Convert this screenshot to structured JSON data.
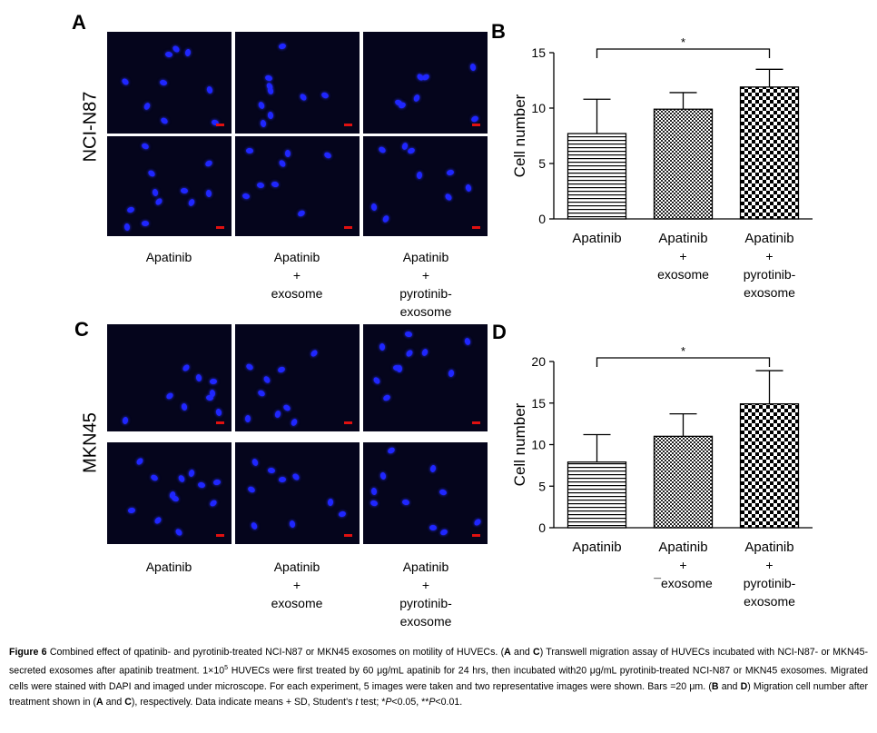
{
  "panels": {
    "A": {
      "letter": "A",
      "row_label": "NCI-N87"
    },
    "B": {
      "letter": "B"
    },
    "C": {
      "letter": "C",
      "row_label": "MKN45"
    },
    "D": {
      "letter": "D"
    }
  },
  "micro_col_labels_top": [
    [
      "Apatinib"
    ],
    [
      "Apatinib",
      "+",
      "exosome"
    ],
    [
      "Apatinib",
      "+",
      "pyrotinib-",
      "exosome"
    ]
  ],
  "micro_col_labels_bottom": [
    [
      "Apatinib"
    ],
    [
      "Apatinib",
      "+",
      "exosome"
    ],
    [
      "Apatinib",
      "+",
      "pyrotinib-",
      "exosome"
    ]
  ],
  "colors": {
    "cell_nucleus": "#1f26ff",
    "micro_bg": "#05051c",
    "scale_bar": "#e01010"
  },
  "chart_data": [
    {
      "panel": "B",
      "type": "bar",
      "ylabel": "Cell number",
      "ylim": [
        0,
        15
      ],
      "yticks": [
        0,
        5,
        10,
        15
      ],
      "categories": [
        [
          "Apatinib"
        ],
        [
          "Apatinib",
          "+",
          "exosome"
        ],
        [
          "Apatinib",
          "+",
          "pyrotinib-",
          "exosome"
        ]
      ],
      "values": [
        7.7,
        9.9,
        11.9
      ],
      "errors": [
        3.1,
        1.5,
        1.6
      ],
      "patterns": [
        "horizontal-stripes",
        "fine-checker",
        "coarse-checker"
      ],
      "significance": {
        "from": 0,
        "to": 2,
        "label": "*"
      }
    },
    {
      "panel": "D",
      "type": "bar",
      "ylabel": "Cell number",
      "ylim": [
        0,
        20
      ],
      "yticks": [
        0,
        5,
        10,
        15,
        20
      ],
      "categories": [
        [
          "Apatinib"
        ],
        [
          "Apatinib",
          "+",
          "¯exosome"
        ],
        [
          "Apatinib",
          "+",
          "pyrotinib-",
          "exosome"
        ]
      ],
      "values": [
        7.9,
        11.0,
        14.9
      ],
      "errors": [
        3.3,
        2.7,
        4.0
      ],
      "patterns": [
        "horizontal-stripes",
        "fine-checker",
        "coarse-checker"
      ],
      "significance": {
        "from": 0,
        "to": 2,
        "label": "*"
      }
    }
  ],
  "caption": {
    "figure_label": "Figure 6",
    "text_1": " Combined effect of qpatinib- and pyrotinib-treated NCI-N87 or MKN45 exosomes on motility of HUVECs. (",
    "A1": "A",
    "text_2": " and ",
    "C1": "C",
    "text_3": ") Transwell migration assay of HUVECs incubated with NCI-N87- or MKN45-secreted exosomes after apatinib treatment. 1×10",
    "sup": "5",
    "text_4": " HUVECs were first treated by 60 μg/mL apatinib for 24 hrs, then incubated with20 μg/mL pyrotinib-treated NCI-N87 or MKN45 exosomes. Migrated cells were stained with DAPI and imaged under microscope. For each experiment, 5 images were taken and two representative images were shown. Bars =20 μm. (",
    "B1": "B",
    "text_5": " and ",
    "D1": "D",
    "text_6": ") Migration cell number after treatment shown in (",
    "A2": "A",
    "text_7": " and ",
    "C2": "C",
    "text_8": "), respectively. Data indicate means + SD, Student's ",
    "t": "t",
    "text_9": " test; *",
    "P1": "P",
    "text_10": "<0.05, **",
    "P2": "P",
    "text_11": "<0.01."
  }
}
